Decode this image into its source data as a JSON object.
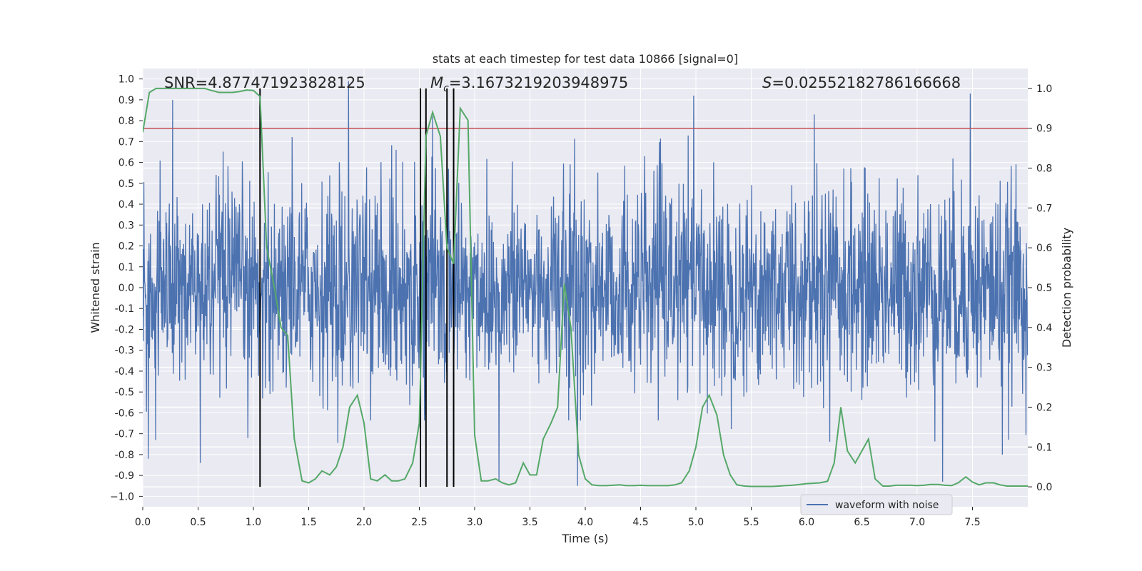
{
  "chart_data": {
    "type": "line",
    "title": "stats at each timestep for test data 10866 [signal=0]",
    "xlabel": "Time (s)",
    "ylabel": "Whitened strain",
    "ylabel_right": "Detection probability",
    "xlim": [
      0.0,
      8.0
    ],
    "ylim": [
      -1.05,
      1.05
    ],
    "ylim_right": [
      -0.05,
      1.05
    ],
    "xticks": [
      "0.0",
      "0.5",
      "1.0",
      "1.5",
      "2.0",
      "2.5",
      "3.0",
      "3.5",
      "4.0",
      "4.5",
      "5.0",
      "5.5",
      "6.0",
      "6.5",
      "7.0",
      "7.5"
    ],
    "xtick_values": [
      0.0,
      0.5,
      1.0,
      1.5,
      2.0,
      2.5,
      3.0,
      3.5,
      4.0,
      4.5,
      5.0,
      5.5,
      6.0,
      6.5,
      7.0,
      7.5
    ],
    "yticks": [
      "1.0",
      "0.9",
      "0.8",
      "0.7",
      "0.6",
      "0.5",
      "0.4",
      "0.3",
      "0.2",
      "0.1",
      "0.0",
      "-0.1",
      "-0.2",
      "-0.3",
      "-0.4",
      "-0.5",
      "-0.6",
      "-0.7",
      "-0.8",
      "-0.9",
      "−1.0"
    ],
    "ytick_values": [
      1.0,
      0.9,
      0.8,
      0.7,
      0.6,
      0.5,
      0.4,
      0.3,
      0.2,
      0.1,
      0.0,
      -0.1,
      -0.2,
      -0.3,
      -0.4,
      -0.5,
      -0.6,
      -0.7,
      -0.8,
      -0.9,
      -1.0
    ],
    "yticks_right": [
      "1.0",
      "0.9",
      "0.8",
      "0.7",
      "0.6",
      "0.5",
      "0.4",
      "0.3",
      "0.2",
      "0.1",
      "0.0"
    ],
    "ytick_right_values": [
      1.0,
      0.9,
      0.8,
      0.7,
      0.6,
      0.5,
      0.4,
      0.3,
      0.2,
      0.1,
      0.0
    ],
    "annotations": {
      "snr": "SNR=4.877471923828125",
      "mc_symbol": "M",
      "mc_subscript": "c",
      "mc_value": "=3.1673219203948975",
      "s_symbol": "S",
      "s_value": "=0.02552182786166668"
    },
    "threshold": 0.9,
    "vertical_markers": [
      1.06,
      2.51,
      2.56,
      2.75,
      2.81
    ],
    "series": [
      {
        "name": "waveform with noise",
        "color": "#4c72b0",
        "description": "whitened noisy strain, approx. 2000 samples spanning about -0.95 to 0.99",
        "spikes": [
          {
            "t": 0.27,
            "v": 0.9
          },
          {
            "t": 1.86,
            "v": 0.99
          },
          {
            "t": 2.62,
            "v": 0.82
          },
          {
            "t": 4.98,
            "v": 0.92
          },
          {
            "t": 6.07,
            "v": 0.83
          },
          {
            "t": 7.48,
            "v": 0.93
          },
          {
            "t": 0.05,
            "v": -0.82
          },
          {
            "t": 0.52,
            "v": -0.84
          },
          {
            "t": 3.22,
            "v": -0.93
          },
          {
            "t": 3.93,
            "v": -0.95
          },
          {
            "t": 7.23,
            "v": -0.93
          },
          {
            "t": 7.77,
            "v": -0.8
          }
        ]
      },
      {
        "name": "detection probability",
        "color": "#55a868",
        "axis": "right",
        "t": [
          0.0,
          0.06,
          0.12,
          0.19,
          0.25,
          0.31,
          0.37,
          0.44,
          0.5,
          0.56,
          0.62,
          0.69,
          0.75,
          0.81,
          0.87,
          0.94,
          1.0,
          1.06,
          1.12,
          1.19,
          1.25,
          1.31,
          1.37,
          1.44,
          1.5,
          1.56,
          1.62,
          1.69,
          1.75,
          1.81,
          1.87,
          1.94,
          2.0,
          2.06,
          2.12,
          2.19,
          2.25,
          2.31,
          2.37,
          2.44,
          2.5,
          2.56,
          2.62,
          2.69,
          2.75,
          2.81,
          2.87,
          2.94,
          3.0,
          3.06,
          3.12,
          3.19,
          3.25,
          3.31,
          3.37,
          3.44,
          3.5,
          3.56,
          3.62,
          3.69,
          3.75,
          3.81,
          3.87,
          3.94,
          4.0,
          4.06,
          4.12,
          4.19,
          4.25,
          4.31,
          4.37,
          4.44,
          4.5,
          4.56,
          4.62,
          4.69,
          4.75,
          4.81,
          4.87,
          4.94,
          5.0,
          5.06,
          5.12,
          5.19,
          5.25,
          5.31,
          5.37,
          5.44,
          5.5,
          5.56,
          5.62,
          5.69,
          5.75,
          5.81,
          5.87,
          5.94,
          6.0,
          6.06,
          6.12,
          6.19,
          6.25,
          6.31,
          6.37,
          6.44,
          6.5,
          6.56,
          6.62,
          6.69,
          6.75,
          6.81,
          6.87,
          6.94,
          7.0,
          7.06,
          7.12,
          7.19,
          7.25,
          7.31,
          7.37,
          7.44,
          7.5,
          7.56,
          7.62,
          7.69,
          7.75,
          7.81,
          7.87,
          7.94,
          8.0
        ],
        "values": [
          0.89,
          0.99,
          1.0,
          1.0,
          1.0,
          1.0,
          1.0,
          1.0,
          1.0,
          1.0,
          0.995,
          0.99,
          0.99,
          0.99,
          0.992,
          0.996,
          0.995,
          0.98,
          0.6,
          0.5,
          0.4,
          0.38,
          0.12,
          0.015,
          0.01,
          0.02,
          0.04,
          0.03,
          0.05,
          0.1,
          0.2,
          0.23,
          0.16,
          0.02,
          0.015,
          0.03,
          0.015,
          0.015,
          0.02,
          0.06,
          0.16,
          0.88,
          0.94,
          0.88,
          0.6,
          0.56,
          0.95,
          0.92,
          0.13,
          0.015,
          0.015,
          0.02,
          0.01,
          0.005,
          0.01,
          0.06,
          0.03,
          0.03,
          0.12,
          0.16,
          0.2,
          0.51,
          0.4,
          0.08,
          0.02,
          0.005,
          0.003,
          0.003,
          0.004,
          0.005,
          0.003,
          0.003,
          0.004,
          0.003,
          0.003,
          0.003,
          0.003,
          0.005,
          0.01,
          0.04,
          0.1,
          0.2,
          0.23,
          0.18,
          0.08,
          0.03,
          0.005,
          0.002,
          0.001,
          0.001,
          0.001,
          0.001,
          0.002,
          0.003,
          0.004,
          0.006,
          0.008,
          0.009,
          0.01,
          0.014,
          0.06,
          0.2,
          0.09,
          0.06,
          0.09,
          0.12,
          0.02,
          0.002,
          0.002,
          0.004,
          0.004,
          0.004,
          0.003,
          0.004,
          0.006,
          0.006,
          0.004,
          0.003,
          0.01,
          0.025,
          0.012,
          0.005,
          0.01,
          0.01,
          0.005,
          0.002,
          0.002,
          0.002,
          0.002
        ]
      }
    ],
    "legend": {
      "label": "waveform with noise",
      "position": "lower-right"
    },
    "grid": true,
    "background_color": "#eaeaf2",
    "threshold_color": "#c44e52",
    "marker_color": "#000000"
  }
}
